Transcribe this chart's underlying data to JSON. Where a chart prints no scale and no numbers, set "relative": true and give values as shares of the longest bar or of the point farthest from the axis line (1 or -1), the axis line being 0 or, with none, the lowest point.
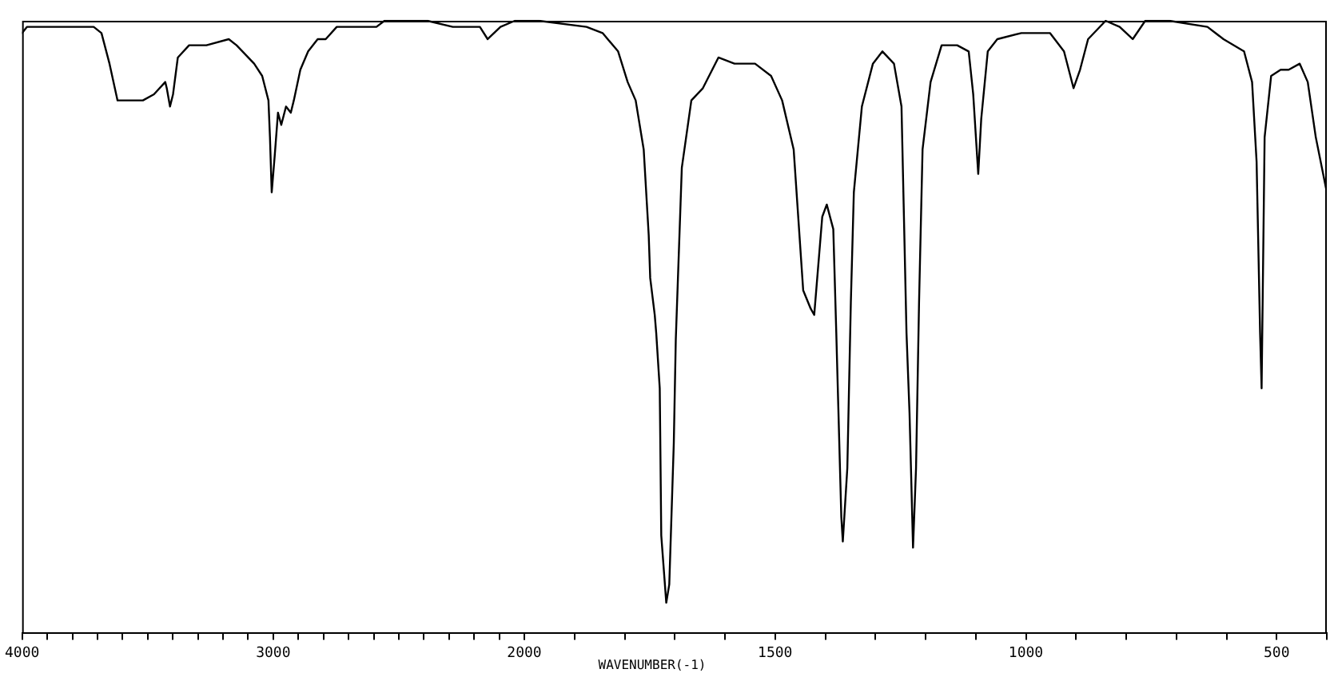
{
  "chart_data": [
    {
      "type": "line",
      "relative": true,
      "xlim": [
        4000,
        2000
      ],
      "xticks": [
        4000,
        {
          "value": 3900,
          "label": null
        },
        {
          "value": 3800,
          "label": null
        },
        {
          "value": 3700,
          "label": null
        },
        {
          "value": 3600,
          "label": null
        },
        {
          "value": 3500,
          "label": null
        },
        {
          "value": 3400,
          "label": null
        },
        {
          "value": 3300,
          "label": null
        },
        {
          "value": 3200,
          "label": null
        },
        {
          "value": 3100,
          "label": null
        },
        3000,
        {
          "value": 2900,
          "label": null
        },
        {
          "value": 2800,
          "label": null
        },
        {
          "value": 2700,
          "label": null
        },
        {
          "value": 2600,
          "label": null
        },
        {
          "value": 2500,
          "label": null
        },
        {
          "value": 2400,
          "label": null
        },
        {
          "value": 2300,
          "label": null
        },
        {
          "value": 2200,
          "label": null
        },
        {
          "value": 2100,
          "label": null
        },
        2000
      ],
      "series": [
        {
          "color": "#000000",
          "x": [
            4000,
            3981,
            3918,
            3842,
            3715,
            3684,
            3652,
            3620,
            3601,
            3519,
            3475,
            3430,
            3424,
            3411,
            3399,
            3380,
            3335,
            3266,
            3177,
            3146,
            3076,
            3044,
            3019,
            3013,
            3006,
            2994,
            2981,
            2968,
            2949,
            2930,
            2918,
            2892,
            2861,
            2823,
            2791,
            2747,
            2620,
            2589,
            2557,
            2475,
            2386,
            2285,
            2241,
            2177,
            2146,
            2095,
            2038,
            2000
          ],
          "values": [
            0.98,
            0.99,
            0.99,
            0.99,
            0.99,
            0.98,
            0.93,
            0.87,
            0.87,
            0.87,
            0.88,
            0.9,
            0.89,
            0.86,
            0.88,
            0.94,
            0.96,
            0.96,
            0.97,
            0.96,
            0.93,
            0.91,
            0.87,
            0.81,
            0.72,
            0.78,
            0.85,
            0.83,
            0.86,
            0.85,
            0.87,
            0.92,
            0.95,
            0.97,
            0.97,
            0.99,
            0.99,
            0.99,
            1.0,
            1.0,
            1.0,
            0.99,
            0.99,
            0.99,
            0.97,
            0.99,
            1.0,
            1.0
          ]
        }
      ]
    },
    {
      "type": "line",
      "relative": true,
      "xlabel": "WAVENUMBER(-1)",
      "xlim": [
        2000,
        400
      ],
      "xticks": [
        {
          "value": 2000,
          "label": null
        },
        {
          "value": 1900,
          "label": null
        },
        {
          "value": 1800,
          "label": null
        },
        {
          "value": 1700,
          "label": null
        },
        {
          "value": 1600,
          "label": null
        },
        1500,
        {
          "value": 1400,
          "label": null
        },
        {
          "value": 1300,
          "label": null
        },
        {
          "value": 1200,
          "label": null
        },
        {
          "value": 1100,
          "label": null
        },
        1000,
        {
          "value": 900,
          "label": null
        },
        {
          "value": 800,
          "label": null
        },
        {
          "value": 700,
          "label": null
        },
        {
          "value": 600,
          "label": null
        },
        500,
        {
          "value": 400,
          "label": null
        }
      ],
      "series": [
        {
          "color": "#000000",
          "x": [
            2000,
            1971,
            1876,
            1844,
            1813,
            1794,
            1778,
            1762,
            1752,
            1749,
            1740,
            1737,
            1730,
            1727,
            1717,
            1711,
            1702,
            1698,
            1686,
            1667,
            1644,
            1613,
            1581,
            1540,
            1508,
            1486,
            1463,
            1444,
            1429,
            1422,
            1406,
            1397,
            1384,
            1378,
            1368,
            1365,
            1356,
            1349,
            1343,
            1327,
            1305,
            1286,
            1263,
            1248,
            1238,
            1232,
            1225,
            1219,
            1213,
            1206,
            1190,
            1168,
            1137,
            1114,
            1105,
            1095,
            1089,
            1076,
            1057,
            1009,
            984,
            952,
            924,
            905,
            892,
            876,
            841,
            813,
            787,
            762,
            714,
            638,
            606,
            565,
            549,
            540,
            533,
            530,
            524,
            511,
            492,
            476,
            454,
            438,
            422,
            400
          ],
          "values": [
            1.0,
            1.0,
            0.99,
            0.98,
            0.95,
            0.9,
            0.87,
            0.79,
            0.65,
            0.58,
            0.52,
            0.49,
            0.4,
            0.16,
            0.05,
            0.08,
            0.31,
            0.48,
            0.76,
            0.87,
            0.89,
            0.94,
            0.93,
            0.93,
            0.91,
            0.87,
            0.79,
            0.56,
            0.53,
            0.52,
            0.68,
            0.7,
            0.66,
            0.49,
            0.19,
            0.15,
            0.27,
            0.54,
            0.72,
            0.86,
            0.93,
            0.95,
            0.93,
            0.86,
            0.49,
            0.36,
            0.14,
            0.27,
            0.54,
            0.79,
            0.9,
            0.96,
            0.96,
            0.95,
            0.88,
            0.75,
            0.84,
            0.95,
            0.97,
            0.98,
            0.98,
            0.98,
            0.95,
            0.89,
            0.92,
            0.97,
            1.0,
            0.99,
            0.97,
            1.0,
            1.0,
            0.99,
            0.97,
            0.95,
            0.9,
            0.77,
            0.49,
            0.4,
            0.81,
            0.91,
            0.92,
            0.92,
            0.93,
            0.9,
            0.81,
            0.72
          ]
        }
      ]
    }
  ]
}
